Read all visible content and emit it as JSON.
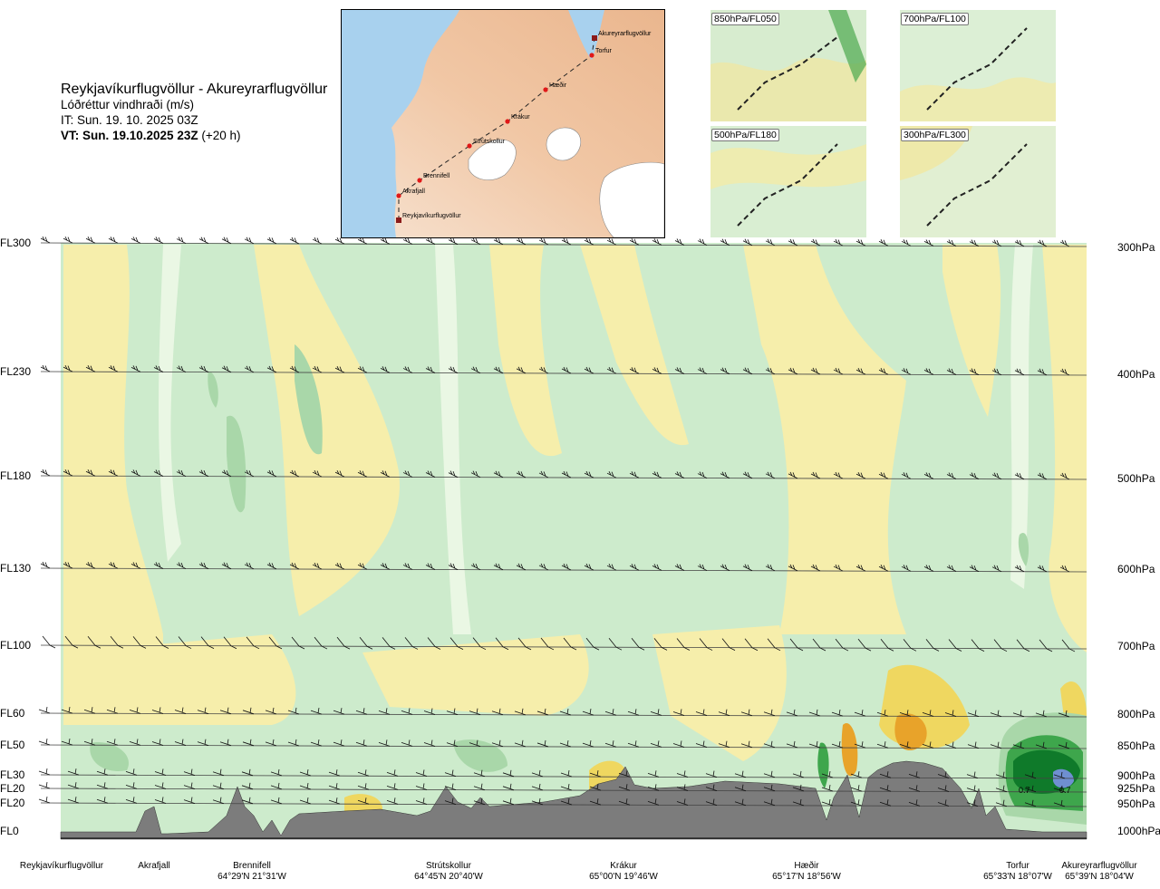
{
  "header": {
    "title": "Reykjavíkurflugvöllur - Akureyrarflugvöllur",
    "variable": "Lóðréttur vindhraði (m/s)",
    "init_time": "IT: Sun. 19. 10. 2025 03Z",
    "valid_time_bold": "VT: Sun. 19.10.2025 23Z",
    "valid_time_offset": "(+20 h)"
  },
  "route_map": {
    "places": [
      {
        "name": "Akureyrarflugvöllur"
      },
      {
        "name": "Torfur"
      },
      {
        "name": "Hæðir"
      },
      {
        "name": "Krákur"
      },
      {
        "name": "Strútskollur"
      },
      {
        "name": "Brennifell"
      },
      {
        "name": "Akrafjall"
      },
      {
        "name": "Reykjavíkurflugvöllur"
      }
    ]
  },
  "mini_maps": [
    {
      "label": "850hPa/FL050"
    },
    {
      "label": "700hPa/FL100"
    },
    {
      "label": "500hPa/FL180"
    },
    {
      "label": "300hPa/FL300"
    }
  ],
  "chart_data": {
    "type": "heatmap",
    "title": "Lóðréttur vindhraði (m/s)",
    "levels": [
      {
        "fl": "FL300",
        "hpa": "300hPa"
      },
      {
        "fl": "FL230",
        "hpa": "400hPa"
      },
      {
        "fl": "FL180",
        "hpa": "500hPa"
      },
      {
        "fl": "FL130",
        "hpa": "600hPa"
      },
      {
        "fl": "FL100",
        "hpa": "700hPa"
      },
      {
        "fl": "FL60",
        "hpa": "800hPa"
      },
      {
        "fl": "FL50",
        "hpa": "850hPa"
      },
      {
        "fl": "FL30",
        "hpa": "900hPa"
      },
      {
        "fl": "FL20",
        "hpa": "925hPa"
      },
      {
        "fl": "FL20",
        "hpa": "950hPa"
      },
      {
        "fl": "FL0",
        "hpa": "1000hPa"
      }
    ],
    "stations": [
      {
        "name": "Reykjavíkurflugvöllur",
        "coord": ""
      },
      {
        "name": "Akrafjall",
        "coord": ""
      },
      {
        "name": "Brennifell",
        "coord": "64°29'N 21°31'W"
      },
      {
        "name": "Strútskollur",
        "coord": "64°45'N 20°40'W"
      },
      {
        "name": "Krákur",
        "coord": "65°00'N 19°46'W"
      },
      {
        "name": "Hæðir",
        "coord": "65°17'N 18°56'W"
      },
      {
        "name": "Torfur",
        "coord": "65°33'N 18°07'W"
      },
      {
        "name": "Akureyrarflugvöllur",
        "coord": "65°39'N 18°04'W"
      }
    ],
    "annotations": [
      "0.7",
      "0.7"
    ],
    "colors": {
      "sink_light": "#f6eeab",
      "sink_mid": "#efd760",
      "sink_strong": "#e8a32a",
      "sink_max": "#d27a22",
      "neutral": "#ffffff",
      "rise_pale": "#eaf7e4",
      "rise_light": "#cdebcc",
      "rise_mid": "#a9d7a9",
      "rise_strong": "#3ea64c",
      "rise_max": "#0f7a2a",
      "rise_peak": "#6f8fd1",
      "terrain": "#7c7c7c"
    }
  }
}
